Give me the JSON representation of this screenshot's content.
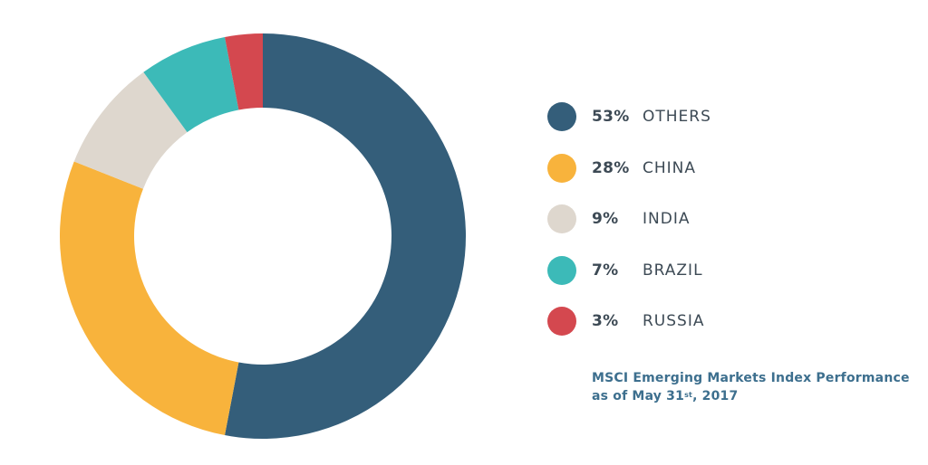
{
  "chart_data": {
    "type": "pie",
    "donut": true,
    "title": "",
    "legend_placement": "right",
    "slices": [
      {
        "pct_label": "53%",
        "label": "OTHERS",
        "value": 53,
        "color": "#345e7a"
      },
      {
        "pct_label": "28%",
        "label": "CHINA",
        "value": 28,
        "color": "#f8b33c"
      },
      {
        "pct_label": "9%",
        "label": "INDIA",
        "value": 9,
        "color": "#ded7ce"
      },
      {
        "pct_label": "7%",
        "label": "BRAZIL",
        "value": 7,
        "color": "#3cbab8"
      },
      {
        "pct_label": "3%",
        "label": "RUSSIA",
        "value": 3,
        "color": "#d4484f"
      }
    ]
  },
  "caption": {
    "line1": "MSCI Emerging Markets Index Performance",
    "line2_prefix": "as of May 31",
    "line2_sup": "st",
    "line2_suffix": ", 2017"
  }
}
